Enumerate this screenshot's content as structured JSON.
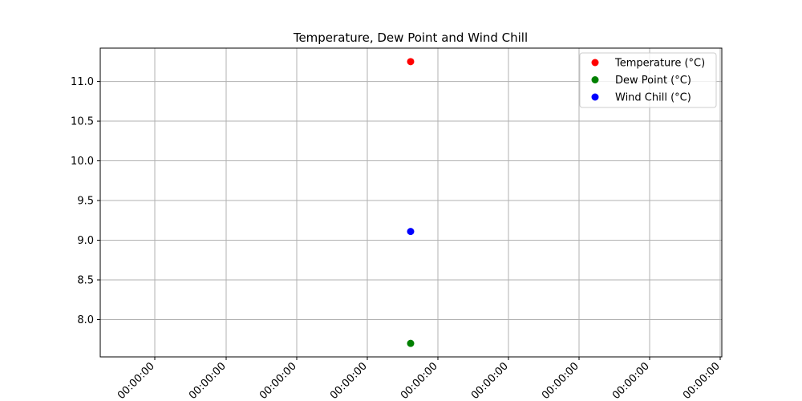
{
  "chart_data": {
    "type": "scatter",
    "title": "Temperature, Dew Point and Wind Chill",
    "xlabel": "",
    "ylabel": "",
    "x_tick_labels": [
      "00:00:00",
      "00:00:00",
      "00:00:00",
      "00:00:00",
      "00:00:00",
      "00:00:00",
      "00:00:00",
      "00:00:00",
      "00:00:00"
    ],
    "y_tick_values": [
      8.0,
      8.5,
      9.0,
      9.5,
      10.0,
      10.5,
      11.0
    ],
    "y_tick_labels": [
      "8.0",
      "8.5",
      "9.0",
      "9.5",
      "10.0",
      "10.5",
      "11.0"
    ],
    "ylim": [
      7.53,
      11.42
    ],
    "grid": true,
    "legend_position": "top-right",
    "series": [
      {
        "name": "Temperature (°C)",
        "color": "#ff0000",
        "values": [
          11.25
        ]
      },
      {
        "name": "Dew Point (°C)",
        "color": "#008000",
        "values": [
          7.7
        ]
      },
      {
        "name": "Wind Chill (°C)",
        "color": "#0000ff",
        "values": [
          9.11
        ]
      }
    ]
  }
}
